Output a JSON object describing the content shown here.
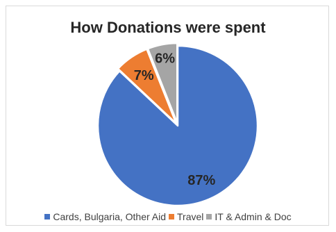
{
  "chart_data": {
    "type": "pie",
    "title": "How Donations were spent",
    "slices": [
      {
        "label": "Cards, Bulgaria, Other Aid",
        "value": 87,
        "display": "87%",
        "color": "#4472C4"
      },
      {
        "label": "Travel",
        "value": 7,
        "display": "7%",
        "color": "#ED7D31"
      },
      {
        "label": "IT & Admin & Doc",
        "value": 6,
        "display": "6%",
        "color": "#A5A5A5"
      }
    ],
    "legend_position": "bottom"
  }
}
